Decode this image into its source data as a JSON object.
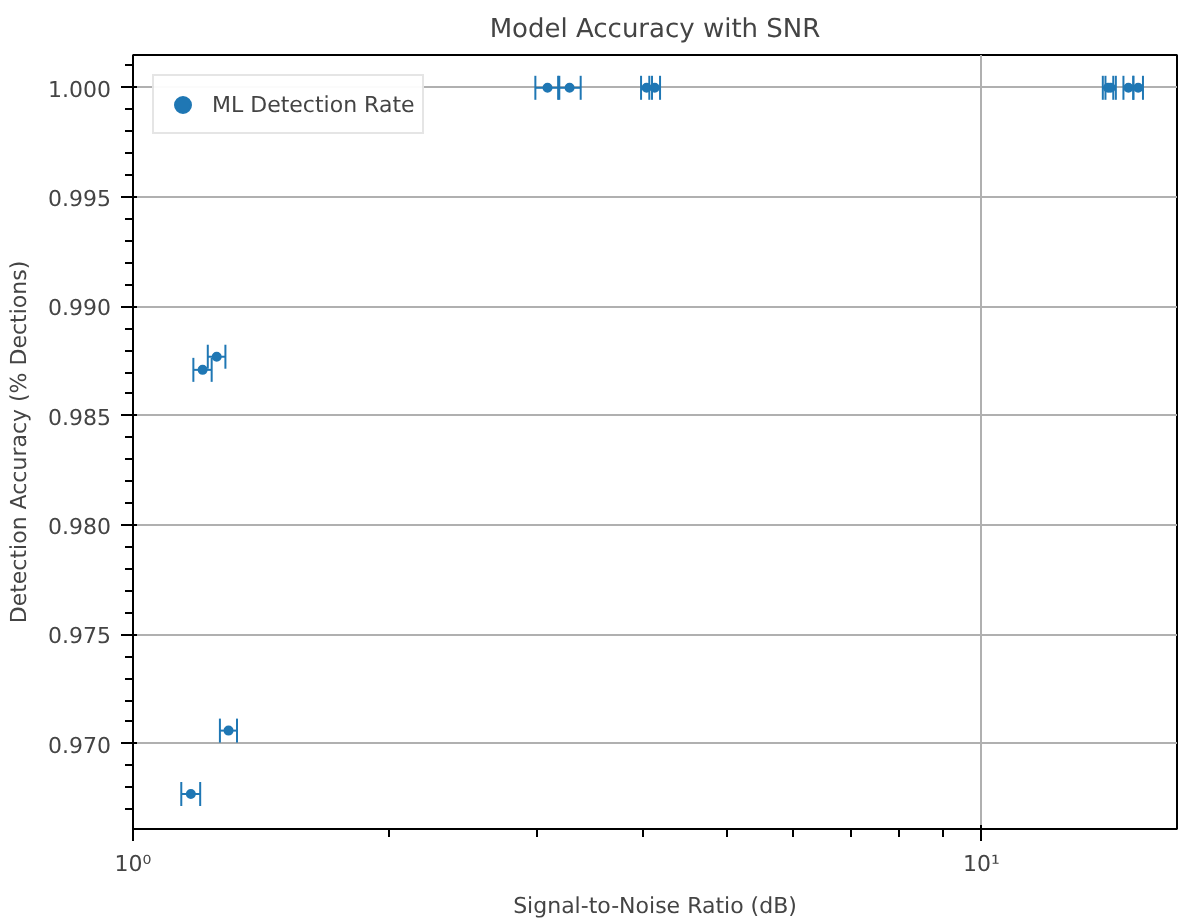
{
  "chart_data": {
    "type": "scatter",
    "title": "Model Accuracy with SNR",
    "xlabel": "Signal-to-Noise Ratio (dB)",
    "ylabel": "Detection Accuracy (% Dections)",
    "x": [
      1.17,
      1.208,
      1.255,
      1.296,
      3.08,
      3.27,
      4.03,
      4.12,
      14.1,
      14.2,
      14.9,
      15.3
    ],
    "series": [
      {
        "name": "ML Detection Rate",
        "color": "#1f77b4",
        "values": [
          0.9677,
          0.9871,
          0.9877,
          0.9706,
          1.0,
          1.0,
          1.0,
          1.0,
          1.0,
          1.0,
          1.0,
          1.0
        ],
        "xerrors": [
          0.03,
          0.03,
          0.03,
          0.03,
          0.1,
          0.1,
          0.06,
          0.06,
          0.2,
          0.2,
          0.2,
          0.2
        ]
      }
    ],
    "log": "x",
    "xlim": [
      1,
      17
    ],
    "xticks": [
      {
        "value": 1,
        "label": "10⁰"
      },
      {
        "value": 10,
        "label": "10¹"
      }
    ],
    "ylim": [
      0.9661,
      1.0015
    ],
    "yticks": [
      {
        "value": 0.97,
        "label": "0.970"
      },
      0.975,
      {
        "value": 0.98,
        "label": "0.980"
      },
      0.985,
      {
        "value": 0.99,
        "label": "0.990"
      },
      0.995,
      {
        "value": 1.0,
        "label": "1.000"
      }
    ],
    "grid": true,
    "legend": "top left",
    "marker": "circle"
  }
}
